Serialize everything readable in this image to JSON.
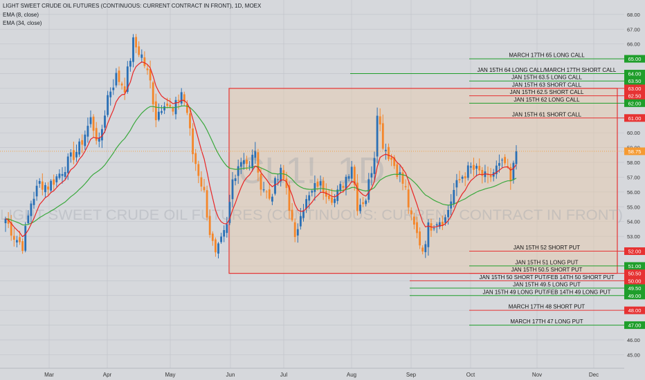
{
  "header": {
    "title": "LIGHT SWEET CRUDE OIL FUTURES (CONTINUOUS: CURRENT CONTRACT IN FRONT), 1D, MOEX",
    "ema_fast": "EMA (8, close)",
    "ema_slow": "EMA (34, close)"
  },
  "watermark": {
    "symbol": "CL1!, 1D",
    "name": "LIGHT SWEET CRUDE OIL FUTURES (CONTINUOUS: CURRENT CONTRACT IN FRONT)"
  },
  "colors": {
    "background": "#d6d8dc",
    "up_candle": "#2a6fb5",
    "down_candle": "#f4862a",
    "ema_fast": "#e82424",
    "ema_slow": "#39a83c",
    "call_line": "#1f9e2b",
    "put_short": "#e63232",
    "box_border": "#e63232",
    "box_fill": "#e8c9a8",
    "last_price": "#f59a32"
  },
  "chart_data": {
    "type": "candlestick",
    "title": "LIGHT SWEET CRUDE OIL FUTURES (CONTINUOUS: CURRENT CONTRACT IN FRONT), 1D, MOEX",
    "ylim": [
      44.6,
      68.6
    ],
    "y_ticks": [
      "45.00",
      "46.00",
      "47.00",
      "48.00",
      "49.00",
      "50.00",
      "51.00",
      "52.00",
      "53.00",
      "54.00",
      "55.00",
      "56.00",
      "57.00",
      "58.00",
      "59.00",
      "60.00",
      "61.00",
      "62.00",
      "63.00",
      "64.00",
      "65.00",
      "66.00",
      "67.00",
      "68.00"
    ],
    "x_months": [
      "Mar",
      "Apr",
      "May",
      "Jun",
      "Jul",
      "Aug",
      "Sep",
      "Oct",
      "Nov",
      "Dec"
    ],
    "grid": true,
    "last_price": {
      "value": 58.75,
      "label": "58.75"
    },
    "range_box": {
      "x_start": "Jun",
      "x_end": "Dec",
      "y_low": 50.5,
      "y_high": 63.0
    },
    "ohlc_anchor_closes": [
      [
        0,
        54.2
      ],
      [
        3,
        53.0
      ],
      [
        6,
        52.4
      ],
      [
        9,
        55.3
      ],
      [
        12,
        56.6
      ],
      [
        15,
        56.4
      ],
      [
        18,
        57.0
      ],
      [
        22,
        58.0
      ],
      [
        26,
        59.0
      ],
      [
        30,
        60.9
      ],
      [
        33,
        59.2
      ],
      [
        36,
        62.5
      ],
      [
        39,
        63.8
      ],
      [
        42,
        63.1
      ],
      [
        45,
        66.1
      ],
      [
        48,
        65.2
      ],
      [
        51,
        63.4
      ],
      [
        53,
        61.1
      ],
      [
        56,
        62.2
      ],
      [
        59,
        61.3
      ],
      [
        62,
        62.8
      ],
      [
        64,
        61.4
      ],
      [
        66,
        58.6
      ],
      [
        68,
        57.3
      ],
      [
        70,
        55.9
      ],
      [
        72,
        53.3
      ],
      [
        74,
        51.6
      ],
      [
        76,
        52.6
      ],
      [
        78,
        53.6
      ],
      [
        80,
        56.8
      ],
      [
        82,
        57.9
      ],
      [
        84,
        58.4
      ],
      [
        86,
        57.6
      ],
      [
        88,
        59.0
      ],
      [
        89,
        56.9
      ],
      [
        91,
        56.3
      ],
      [
        93,
        55.6
      ],
      [
        95,
        56.5
      ],
      [
        97,
        57.3
      ],
      [
        99,
        56.3
      ],
      [
        102,
        52.6
      ],
      [
        104,
        54.8
      ],
      [
        107,
        55.6
      ],
      [
        110,
        56.6
      ],
      [
        113,
        56.1
      ],
      [
        116,
        55.5
      ],
      [
        119,
        56.6
      ],
      [
        122,
        57.9
      ],
      [
        124,
        55.1
      ],
      [
        127,
        55.6
      ],
      [
        130,
        58.6
      ],
      [
        131,
        61.6
      ],
      [
        133,
        59.3
      ],
      [
        136,
        58.2
      ],
      [
        139,
        57.1
      ],
      [
        141,
        56.1
      ],
      [
        143,
        54.1
      ],
      [
        145,
        53.1
      ],
      [
        147,
        52.1
      ],
      [
        149,
        53.6
      ],
      [
        152,
        54.1
      ],
      [
        155,
        54.2
      ],
      [
        158,
        56.1
      ],
      [
        161,
        57.1
      ],
      [
        164,
        57.6
      ],
      [
        167,
        57.3
      ],
      [
        170,
        56.8
      ],
      [
        173,
        57.6
      ],
      [
        176,
        57.9
      ],
      [
        178,
        56.6
      ],
      [
        180,
        58.75
      ]
    ],
    "series": [
      {
        "name": "EMA (8, close)",
        "values": "fast exponential moving average of closes"
      },
      {
        "name": "EMA (34, close)",
        "values": "slow exponential moving average of closes"
      }
    ],
    "levels": [
      {
        "price": 65.0,
        "label": "MARCH 17TH 65 LONG CALL",
        "axis_label": "65.00",
        "kind": "call",
        "x_from": "Oct"
      },
      {
        "price": 64.0,
        "label": "JAN 15TH 64 LONG CALL/MARCH 17TH SHORT CALL",
        "axis_label": "64.00",
        "kind": "call",
        "x_from": "Aug"
      },
      {
        "price": 63.5,
        "label": "JAN 15TH 63.5 LONG CALL",
        "axis_label": "63.50",
        "kind": "call",
        "x_from": "Oct"
      },
      {
        "price": 63.0,
        "label": "JAN 15TH 63 SHORT CALL",
        "axis_label": "63.00",
        "kind": "short",
        "x_from": "Oct"
      },
      {
        "price": 62.5,
        "label": "JAN 15TH 62.5 SHORT CALL",
        "axis_label": "62.50",
        "kind": "short",
        "x_from": "Oct"
      },
      {
        "price": 62.0,
        "label": "JAN 15TH 62 LONG CALL",
        "axis_label": "62.00",
        "kind": "call",
        "x_from": "Oct"
      },
      {
        "price": 61.0,
        "label": "JAN 15TH 61 SHORT CALL",
        "axis_label": "61.00",
        "kind": "short",
        "x_from": "Oct"
      },
      {
        "price": 52.0,
        "label": "JAN 15TH 52 SHORT PUT",
        "axis_label": "52.00",
        "kind": "short",
        "x_from": "Oct"
      },
      {
        "price": 51.0,
        "label": "JAN 15TH 51 LONG PUT",
        "axis_label": "51.00",
        "kind": "call",
        "x_from": "Oct"
      },
      {
        "price": 50.5,
        "label": "JAN 15TH 50.5 SHORT PUT",
        "axis_label": "50.50",
        "kind": "short",
        "x_from": "Oct"
      },
      {
        "price": 50.0,
        "label": "JAN 15TH 50 SHORT PUT/FEB 14TH 50 SHORT PUT",
        "axis_label": "50.00",
        "kind": "short",
        "x_from": "Sep"
      },
      {
        "price": 49.5,
        "label": "JAN 15TH 49.5 LONG PUT",
        "axis_label": "49.50",
        "kind": "call",
        "x_from": "Sep"
      },
      {
        "price": 49.0,
        "label": "JAN 15TH 49 LONG PUT/FEB 14TH 49 LONG PUT",
        "axis_label": "49.00",
        "kind": "call",
        "x_from": "Sep"
      },
      {
        "price": 48.0,
        "label": "MARCH 17TH 48 SHORT PUT",
        "axis_label": "48.00",
        "kind": "short",
        "x_from": "Oct"
      },
      {
        "price": 47.0,
        "label": "MARCH 17TH 47 LONG PUT",
        "axis_label": "47.00",
        "kind": "call",
        "x_from": "Oct"
      }
    ]
  }
}
